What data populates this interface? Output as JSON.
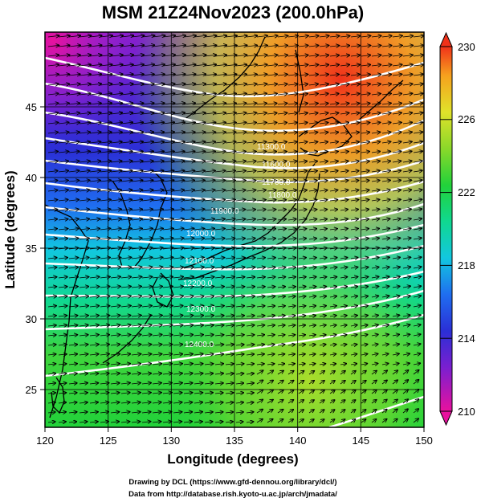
{
  "title": "MSM 21Z24Nov2023 (200.0hPa)",
  "x_axis": {
    "label": "Longitude (degrees)",
    "ticks": [
      "120",
      "125",
      "130",
      "135",
      "140",
      "145",
      "150"
    ]
  },
  "y_axis": {
    "label": "Latitude  (degrees)",
    "ticks": [
      "25",
      "30",
      "35",
      "40",
      "45"
    ]
  },
  "colorbar": {
    "min": 210,
    "max": 230,
    "tick_labels": [
      "210",
      "214",
      "218",
      "222",
      "226",
      "230"
    ],
    "palette": [
      "#e8119e",
      "#7a1fd0",
      "#2b2fd6",
      "#1f6ef0",
      "#12c7e0",
      "#10d890",
      "#22d23a",
      "#8ad82a",
      "#e0e22a",
      "#f6a21e",
      "#f0321a"
    ]
  },
  "map": {
    "lon_range": [
      120,
      150
    ],
    "lat_range": [
      22.8,
      48.0
    ],
    "contour_labels": [
      "11300.0",
      "11600.0",
      "11700.0",
      "11800.0",
      "11900.0",
      "12000.0",
      "12100.0",
      "12200.0",
      "12300.0",
      "12400.0"
    ],
    "wind_vector_color": "#000000",
    "contour_color": "#ffffff"
  },
  "footer": {
    "line1": "Drawing by DCL (https://www.gfd-dennou.org/library/dcl/)",
    "line2": "Data from http://database.rish.kyoto-u.ac.jp/arch/jmadata/"
  }
}
